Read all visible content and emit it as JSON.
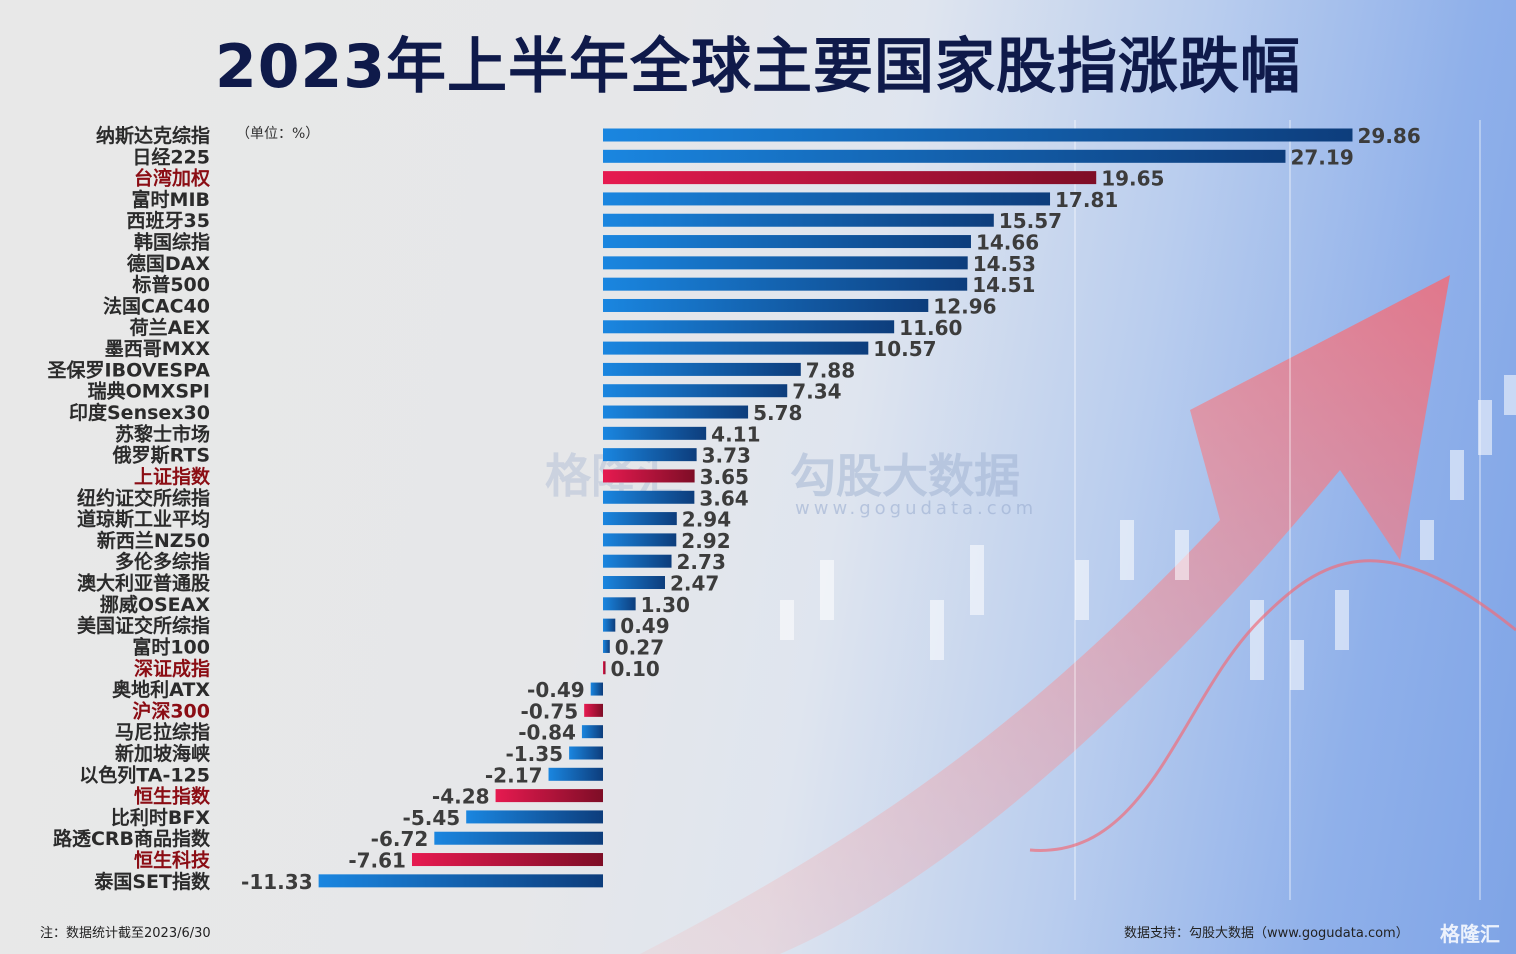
{
  "title": "2023年上半年全球主要国家股指涨跌幅",
  "unit_label": "（单位：%）",
  "note": "注：数据统计截至2023/6/30",
  "source": "数据支持：勾股大数据（www.gogudata.com）",
  "watermarks": {
    "gelonghui": "格隆汇",
    "gogudata": "勾股大数据",
    "gogudata_url": "www.gogudata.com"
  },
  "colors": {
    "positive_bar": "#0d4d9a",
    "china_bar": "#c8173f",
    "title": "#0f1a4a",
    "china_label": "#8b0d14"
  },
  "chart_data": {
    "type": "bar",
    "orientation": "horizontal",
    "title": "2023年上半年全球主要国家股指涨跌幅",
    "unit": "%",
    "categories": [
      "纳斯达克综指",
      "日经225",
      "台湾加权",
      "富时MIB",
      "西班牙35",
      "韩国综指",
      "德国DAX",
      "标普500",
      "法国CAC40",
      "荷兰AEX",
      "墨西哥MXX",
      "圣保罗IBOVESPA",
      "瑞典OMXSPI",
      "印度Sensex30",
      "苏黎士市场",
      "俄罗斯RTS",
      "上证指数",
      "纽约证交所综指",
      "道琼斯工业平均",
      "新西兰NZ50",
      "多伦多综指",
      "澳大利亚普通股",
      "挪威OSEAX",
      "美国证交所综指",
      "富时100",
      "深证成指",
      "奥地利ATX",
      "沪深300",
      "马尼拉综指",
      "新加坡海峡",
      "以色列TA-125",
      "恒生指数",
      "比利时BFX",
      "路透CRB商品指数",
      "恒生科技",
      "泰国SET指数"
    ],
    "values": [
      29.86,
      27.19,
      19.65,
      17.81,
      15.57,
      14.66,
      14.53,
      14.51,
      12.96,
      11.6,
      10.57,
      7.88,
      7.34,
      5.78,
      4.11,
      3.73,
      3.65,
      3.64,
      2.94,
      2.92,
      2.73,
      2.47,
      1.3,
      0.49,
      0.27,
      0.1,
      -0.49,
      -0.75,
      -0.84,
      -1.35,
      -2.17,
      -4.28,
      -5.45,
      -6.72,
      -7.61,
      -11.33
    ],
    "value_labels": [
      "29.86",
      "27.19",
      "19.65",
      "17.81",
      "15.57",
      "14.66",
      "14.53",
      "14.51",
      "12.96",
      "11.60",
      "10.57",
      "7.88",
      "7.34",
      "5.78",
      "4.11",
      "3.73",
      "3.65",
      "3.64",
      "2.94",
      "2.92",
      "2.73",
      "2.47",
      "1.30",
      "0.49",
      "0.27",
      "0.10",
      "-0.49",
      "-0.75",
      "-0.84",
      "-1.35",
      "-2.17",
      "-4.28",
      "-5.45",
      "-6.72",
      "-7.61",
      "-11.33"
    ],
    "highlighted_china": [
      "台湾加权",
      "上证指数",
      "深证成指",
      "沪深300",
      "恒生指数",
      "恒生科技"
    ],
    "xlim": [
      -11.33,
      29.86
    ],
    "grid": false,
    "legend": "none"
  }
}
